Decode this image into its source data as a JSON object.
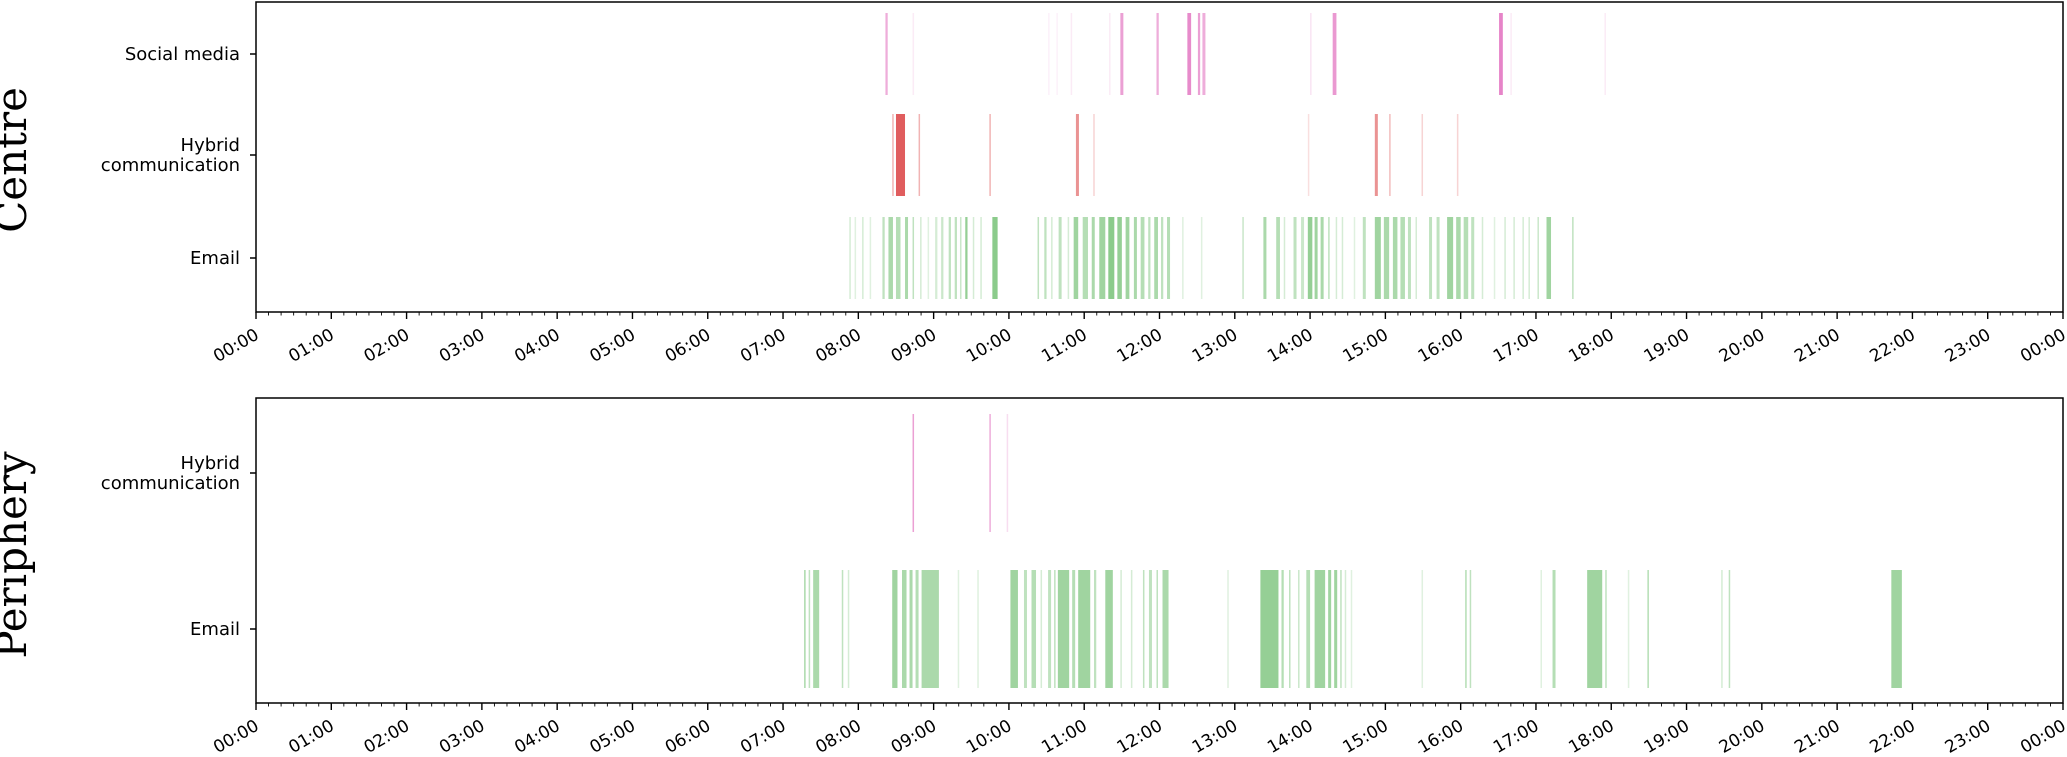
{
  "colors": {
    "social_media": "#e377c2",
    "hybrid_communication": "#d62728",
    "email": "#2ca02c"
  },
  "chart_data": [
    {
      "type": "event-timeline",
      "group_label": "Centre",
      "x_unit": "time of day (hours)",
      "xlim": [
        0,
        24
      ],
      "x_ticks": [
        "00:00",
        "01:00",
        "02:00",
        "03:00",
        "04:00",
        "05:00",
        "06:00",
        "07:00",
        "08:00",
        "09:00",
        "10:00",
        "11:00",
        "12:00",
        "13:00",
        "14:00",
        "15:00",
        "16:00",
        "17:00",
        "18:00",
        "19:00",
        "20:00",
        "21:00",
        "22:00",
        "23:00",
        "00:00"
      ],
      "categories": [
        "Social media",
        "Hybrid communication",
        "Email"
      ],
      "category_label_lines": [
        [
          "Social media"
        ],
        [
          "Hybrid",
          "communication"
        ],
        [
          "Email"
        ]
      ],
      "events": [
        {
          "category": "Social media",
          "color_key": "social_media",
          "segments": [
            [
              8.36,
              8.39,
              0.6
            ],
            [
              8.72,
              8.74,
              0.15
            ],
            [
              10.52,
              10.54,
              0.1
            ],
            [
              10.63,
              10.65,
              0.1
            ],
            [
              10.82,
              10.84,
              0.15
            ],
            [
              11.33,
              11.35,
              0.15
            ],
            [
              11.48,
              11.52,
              0.7
            ],
            [
              11.96,
              11.99,
              0.6
            ],
            [
              12.37,
              12.42,
              0.85
            ],
            [
              12.51,
              12.54,
              0.7
            ],
            [
              12.57,
              12.61,
              0.6
            ],
            [
              14.0,
              14.02,
              0.2
            ],
            [
              14.3,
              14.35,
              0.75
            ],
            [
              16.51,
              16.56,
              0.9
            ],
            [
              16.66,
              16.68,
              0.15
            ],
            [
              17.91,
              17.93,
              0.15
            ]
          ]
        },
        {
          "category": "Hybrid communication",
          "color_key": "hybrid_communication",
          "segments": [
            [
              8.45,
              8.47,
              0.35
            ],
            [
              8.5,
              8.62,
              0.75
            ],
            [
              8.8,
              8.82,
              0.35
            ],
            [
              9.74,
              9.76,
              0.35
            ],
            [
              10.89,
              10.93,
              0.5
            ],
            [
              11.12,
              11.14,
              0.2
            ],
            [
              13.97,
              13.99,
              0.15
            ],
            [
              14.86,
              14.9,
              0.5
            ],
            [
              15.05,
              15.07,
              0.3
            ],
            [
              15.48,
              15.5,
              0.2
            ],
            [
              15.95,
              15.97,
              0.2
            ]
          ]
        },
        {
          "category": "Email",
          "color_key": "email",
          "segments": [
            [
              7.88,
              7.9,
              0.2
            ],
            [
              7.95,
              7.97,
              0.15
            ],
            [
              8.05,
              8.07,
              0.2
            ],
            [
              8.15,
              8.17,
              0.15
            ],
            [
              8.32,
              8.35,
              0.3
            ],
            [
              8.4,
              8.46,
              0.4
            ],
            [
              8.5,
              8.56,
              0.35
            ],
            [
              8.62,
              8.66,
              0.4
            ],
            [
              8.72,
              8.74,
              0.3
            ],
            [
              8.82,
              8.84,
              0.2
            ],
            [
              8.92,
              8.94,
              0.15
            ],
            [
              9.02,
              9.05,
              0.2
            ],
            [
              9.1,
              9.13,
              0.25
            ],
            [
              9.2,
              9.23,
              0.3
            ],
            [
              9.28,
              9.31,
              0.3
            ],
            [
              9.35,
              9.37,
              0.25
            ],
            [
              9.42,
              9.45,
              0.5
            ],
            [
              9.52,
              9.54,
              0.2
            ],
            [
              9.62,
              9.64,
              0.2
            ],
            [
              9.78,
              9.85,
              0.55
            ],
            [
              10.38,
              10.4,
              0.3
            ],
            [
              10.47,
              10.5,
              0.3
            ],
            [
              10.56,
              10.58,
              0.2
            ],
            [
              10.66,
              10.7,
              0.3
            ],
            [
              10.78,
              10.8,
              0.2
            ],
            [
              10.86,
              10.92,
              0.45
            ],
            [
              10.98,
              11.05,
              0.35
            ],
            [
              11.1,
              11.14,
              0.4
            ],
            [
              11.2,
              11.28,
              0.45
            ],
            [
              11.32,
              11.4,
              0.55
            ],
            [
              11.44,
              11.5,
              0.5
            ],
            [
              11.55,
              11.6,
              0.45
            ],
            [
              11.66,
              11.7,
              0.4
            ],
            [
              11.75,
              11.8,
              0.35
            ],
            [
              11.85,
              11.88,
              0.3
            ],
            [
              11.93,
              11.98,
              0.4
            ],
            [
              12.02,
              12.05,
              0.3
            ],
            [
              12.1,
              12.14,
              0.35
            ],
            [
              12.3,
              12.32,
              0.15
            ],
            [
              12.55,
              12.57,
              0.15
            ],
            [
              13.1,
              13.12,
              0.25
            ],
            [
              13.38,
              13.42,
              0.4
            ],
            [
              13.55,
              13.6,
              0.35
            ],
            [
              13.65,
              13.67,
              0.2
            ],
            [
              13.78,
              13.82,
              0.3
            ],
            [
              13.88,
              13.92,
              0.25
            ],
            [
              13.97,
              14.03,
              0.5
            ],
            [
              14.06,
              14.1,
              0.45
            ],
            [
              14.14,
              14.18,
              0.4
            ],
            [
              14.24,
              14.26,
              0.3
            ],
            [
              14.34,
              14.36,
              0.2
            ],
            [
              14.42,
              14.44,
              0.2
            ],
            [
              14.58,
              14.6,
              0.15
            ],
            [
              14.7,
              14.74,
              0.3
            ],
            [
              14.86,
              14.94,
              0.45
            ],
            [
              14.98,
              15.05,
              0.4
            ],
            [
              15.1,
              15.16,
              0.4
            ],
            [
              15.2,
              15.26,
              0.35
            ],
            [
              15.3,
              15.34,
              0.3
            ],
            [
              15.4,
              15.42,
              0.2
            ],
            [
              15.58,
              15.62,
              0.3
            ],
            [
              15.68,
              15.72,
              0.3
            ],
            [
              15.82,
              15.9,
              0.45
            ],
            [
              15.94,
              16.0,
              0.4
            ],
            [
              16.04,
              16.1,
              0.35
            ],
            [
              16.14,
              16.18,
              0.3
            ],
            [
              16.28,
              16.3,
              0.2
            ],
            [
              16.44,
              16.46,
              0.15
            ],
            [
              16.58,
              16.6,
              0.2
            ],
            [
              16.7,
              16.72,
              0.2
            ],
            [
              16.82,
              16.84,
              0.2
            ],
            [
              16.9,
              16.92,
              0.2
            ],
            [
              17.02,
              17.04,
              0.25
            ],
            [
              17.14,
              17.2,
              0.45
            ],
            [
              17.48,
              17.5,
              0.3
            ]
          ]
        }
      ]
    },
    {
      "type": "event-timeline",
      "group_label": "Periphery",
      "x_unit": "time of day (hours)",
      "xlim": [
        0,
        24
      ],
      "x_ticks": [
        "00:00",
        "01:00",
        "02:00",
        "03:00",
        "04:00",
        "05:00",
        "06:00",
        "07:00",
        "08:00",
        "09:00",
        "10:00",
        "11:00",
        "12:00",
        "13:00",
        "14:00",
        "15:00",
        "16:00",
        "17:00",
        "18:00",
        "19:00",
        "20:00",
        "21:00",
        "22:00",
        "23:00",
        "00:00"
      ],
      "categories": [
        "Hybrid communication",
        "Email"
      ],
      "category_label_lines": [
        [
          "Hybrid",
          "communication"
        ],
        [
          "Email"
        ]
      ],
      "events": [
        {
          "category": "Hybrid communication",
          "color_key": "social_media",
          "segments": [
            [
              8.72,
              8.74,
              0.7
            ],
            [
              9.74,
              9.76,
              0.6
            ],
            [
              9.97,
              9.99,
              0.25
            ]
          ]
        },
        {
          "category": "Email",
          "color_key": "email",
          "segments": [
            [
              7.28,
              7.3,
              0.4
            ],
            [
              7.34,
              7.36,
              0.3
            ],
            [
              7.4,
              7.48,
              0.4
            ],
            [
              7.78,
              7.8,
              0.3
            ],
            [
              7.86,
              7.88,
              0.2
            ],
            [
              8.45,
              8.52,
              0.45
            ],
            [
              8.58,
              8.64,
              0.4
            ],
            [
              8.68,
              8.72,
              0.4
            ],
            [
              8.76,
              8.8,
              0.35
            ],
            [
              8.84,
              9.07,
              0.4
            ],
            [
              9.32,
              9.34,
              0.15
            ],
            [
              9.58,
              9.6,
              0.15
            ],
            [
              10.02,
              10.12,
              0.45
            ],
            [
              10.2,
              10.24,
              0.3
            ],
            [
              10.3,
              10.36,
              0.35
            ],
            [
              10.42,
              10.44,
              0.2
            ],
            [
              10.52,
              10.56,
              0.3
            ],
            [
              10.6,
              10.62,
              0.3
            ],
            [
              10.65,
              10.8,
              0.45
            ],
            [
              10.84,
              10.88,
              0.35
            ],
            [
              10.92,
              11.08,
              0.45
            ],
            [
              11.13,
              11.16,
              0.3
            ],
            [
              11.28,
              11.38,
              0.45
            ],
            [
              11.48,
              11.5,
              0.2
            ],
            [
              11.62,
              11.64,
              0.2
            ],
            [
              11.78,
              11.8,
              0.3
            ],
            [
              11.86,
              11.9,
              0.3
            ],
            [
              11.96,
              11.98,
              0.3
            ],
            [
              12.04,
              12.12,
              0.4
            ],
            [
              12.9,
              12.92,
              0.15
            ],
            [
              13.34,
              13.58,
              0.5
            ],
            [
              13.62,
              13.65,
              0.35
            ],
            [
              13.72,
              13.74,
              0.3
            ],
            [
              13.84,
              13.86,
              0.25
            ],
            [
              13.95,
              14.0,
              0.35
            ],
            [
              14.06,
              14.2,
              0.45
            ],
            [
              14.24,
              14.28,
              0.45
            ],
            [
              14.32,
              14.36,
              0.45
            ],
            [
              14.4,
              14.42,
              0.3
            ],
            [
              14.46,
              14.48,
              0.2
            ],
            [
              14.54,
              14.56,
              0.15
            ],
            [
              15.48,
              15.5,
              0.15
            ],
            [
              16.06,
              16.08,
              0.35
            ],
            [
              16.12,
              16.14,
              0.3
            ],
            [
              17.06,
              17.08,
              0.15
            ],
            [
              17.22,
              17.26,
              0.35
            ],
            [
              17.68,
              17.88,
              0.45
            ],
            [
              17.92,
              17.94,
              0.3
            ],
            [
              18.22,
              18.24,
              0.15
            ],
            [
              18.48,
              18.5,
              0.35
            ],
            [
              19.46,
              19.48,
              0.2
            ],
            [
              19.56,
              19.58,
              0.3
            ],
            [
              21.72,
              21.86,
              0.45
            ]
          ]
        }
      ]
    }
  ]
}
